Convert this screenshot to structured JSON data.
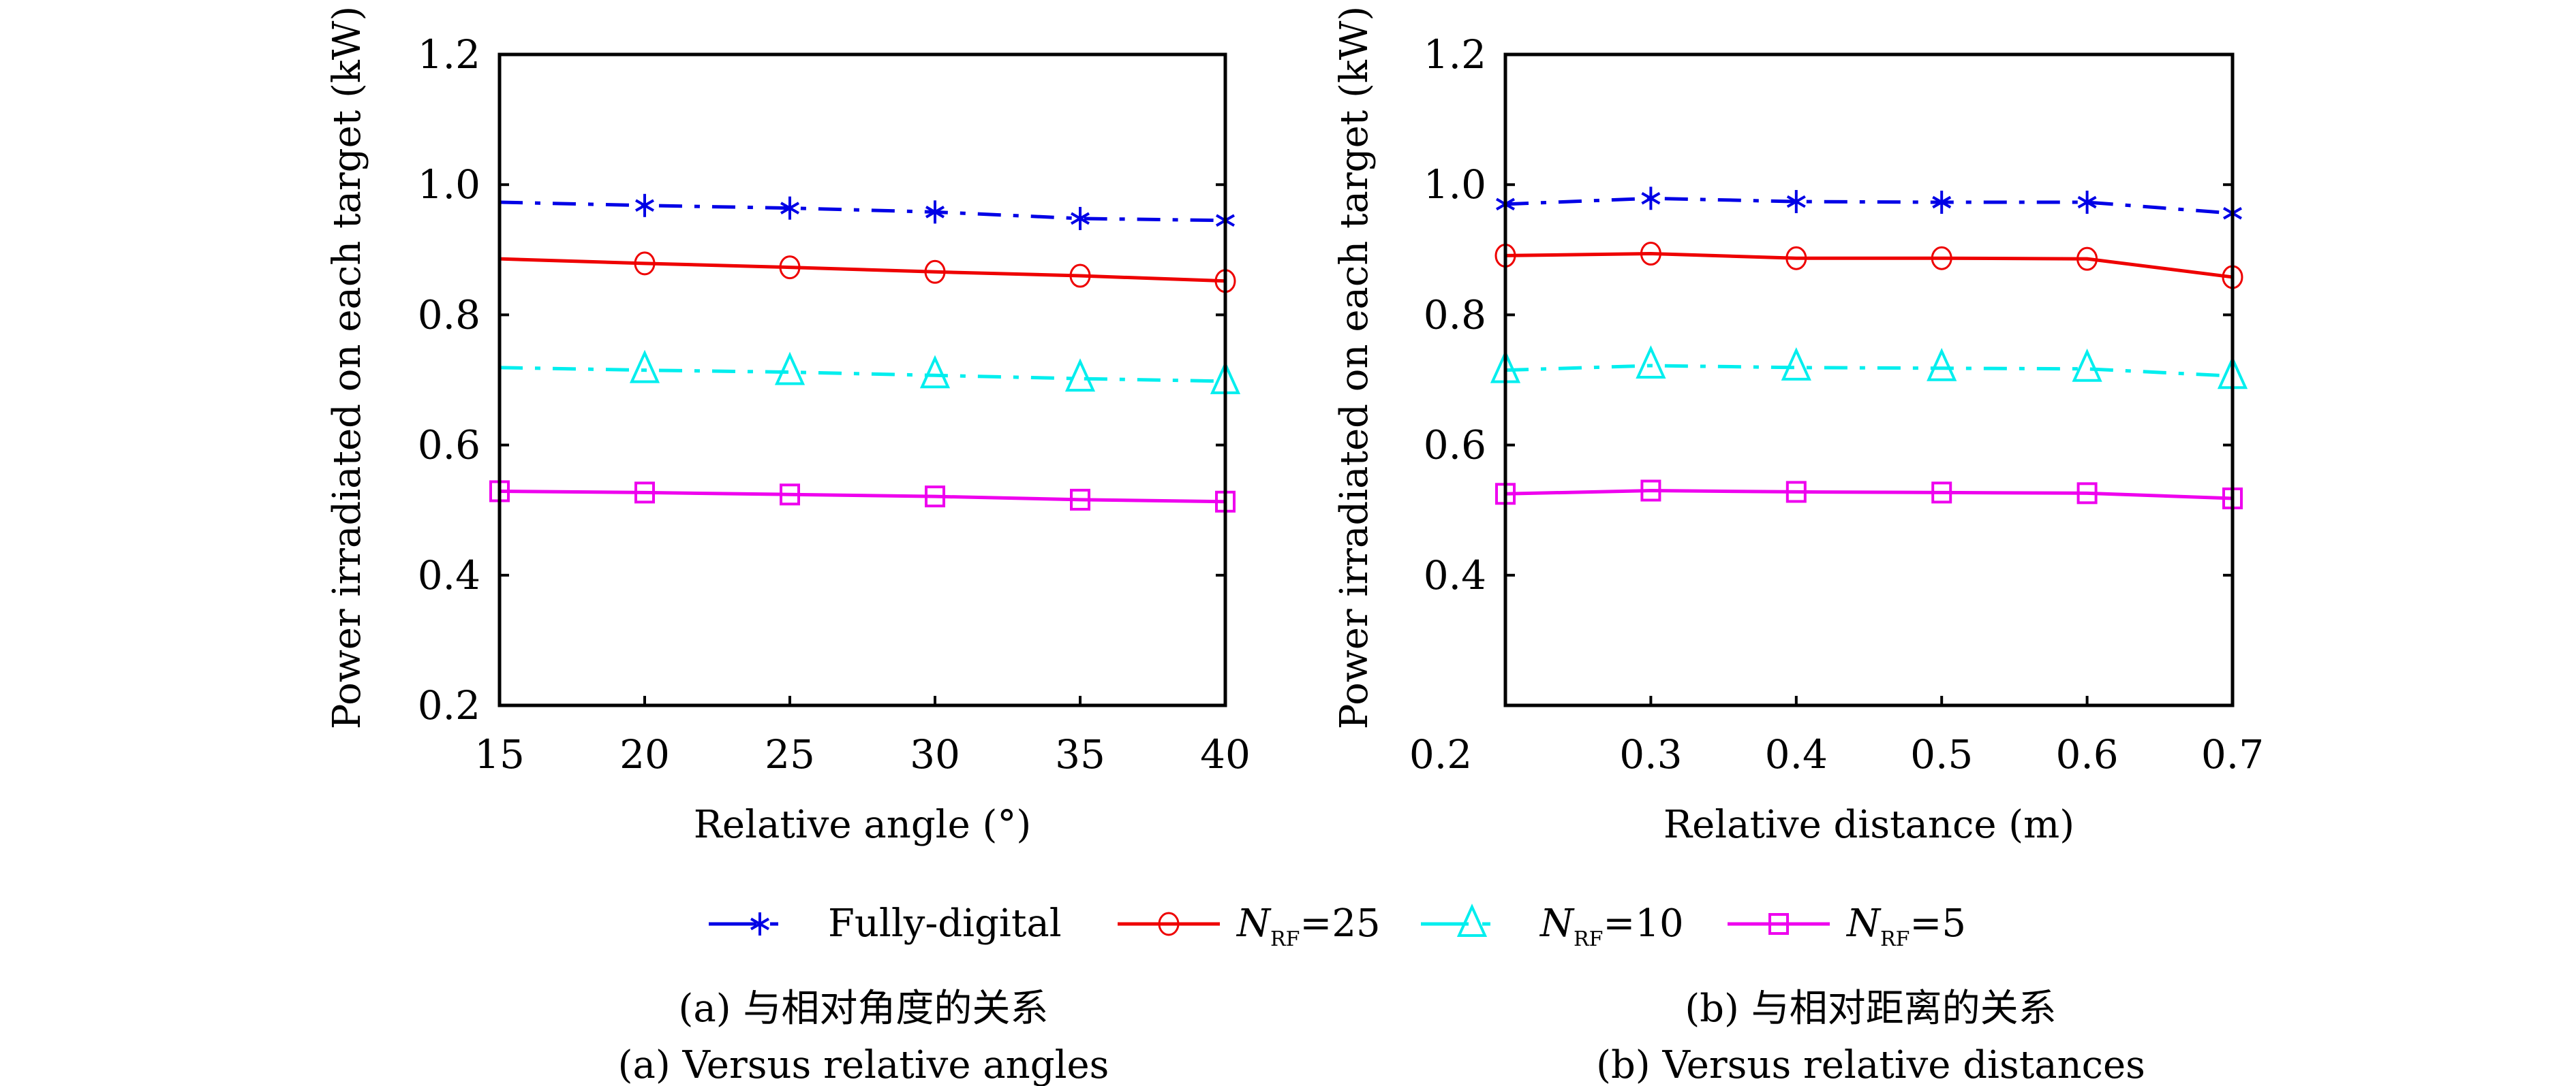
{
  "chart_data": [
    {
      "type": "line",
      "id": "a",
      "xlabel": "Relative angle (°)",
      "ylabel": "Power irradiated on each target (kW)",
      "x": [
        15,
        20,
        25,
        30,
        35,
        40
      ],
      "xticks": [
        "15",
        "20",
        "25",
        "30",
        "35",
        "40"
      ],
      "xlim": [
        15,
        40
      ],
      "ylim": [
        0.2,
        1.2
      ],
      "yticks": [
        "0.2",
        "0.4",
        "0.6",
        "0.8",
        "1.0",
        "1.2"
      ],
      "grid": false,
      "series": [
        {
          "name": "Fully-digital",
          "values": [
            0.973,
            0.968,
            0.964,
            0.958,
            0.948,
            0.945
          ]
        },
        {
          "name": "N_RF=25",
          "values": [
            0.886,
            0.879,
            0.873,
            0.866,
            0.86,
            0.852
          ]
        },
        {
          "name": "N_RF=10",
          "values": [
            0.719,
            0.715,
            0.712,
            0.707,
            0.702,
            0.698
          ]
        },
        {
          "name": "N_RF=5",
          "values": [
            0.529,
            0.527,
            0.524,
            0.521,
            0.516,
            0.513
          ]
        }
      ],
      "caption_cn": "(a) 与相对角度的关系",
      "caption_en": "(a) Versus relative angles"
    },
    {
      "type": "line",
      "id": "b",
      "xlabel": "Relative distance (m)",
      "ylabel": "Power irradiated on each target (kW)",
      "x": [
        0.2,
        0.3,
        0.4,
        0.5,
        0.6,
        0.7
      ],
      "xticks": [
        "0.2",
        "0.3",
        "0.4",
        "0.5",
        "0.6",
        "0.7"
      ],
      "xlim": [
        0.2,
        0.7
      ],
      "ylim": [
        0.2,
        1.2
      ],
      "yticks": [
        "0.4",
        "0.6",
        "0.8",
        "1.0",
        "1.2"
      ],
      "ytick_outside_bottom": "0.2",
      "grid": false,
      "series": [
        {
          "name": "Fully-digital",
          "values": [
            0.97,
            0.979,
            0.974,
            0.973,
            0.973,
            0.956
          ]
        },
        {
          "name": "N_RF=25",
          "values": [
            0.891,
            0.894,
            0.887,
            0.887,
            0.886,
            0.858
          ]
        },
        {
          "name": "N_RF=10",
          "values": [
            0.715,
            0.722,
            0.719,
            0.718,
            0.717,
            0.706
          ]
        },
        {
          "name": "N_RF=5",
          "values": [
            0.525,
            0.53,
            0.528,
            0.527,
            0.526,
            0.518
          ]
        }
      ],
      "caption_cn": "(b) 与相对距离的关系",
      "caption_en": "(b) Versus relative distances"
    }
  ],
  "legend": {
    "placement": "bottom-center",
    "entries": [
      {
        "label": "Fully-digital",
        "sub": "",
        "suffix": "",
        "color": "#0000e6",
        "marker": "asterisk",
        "dash": "dashdot"
      },
      {
        "label": "N",
        "sub": "RF",
        "suffix": "=25",
        "color": "#ee0000",
        "marker": "circle",
        "dash": "solid"
      },
      {
        "label": "N",
        "sub": "RF",
        "suffix": "=10",
        "color": "#00eeee",
        "marker": "triangle",
        "dash": "dashdot"
      },
      {
        "label": "N",
        "sub": "RF",
        "suffix": "=5",
        "color": "#ee00ee",
        "marker": "square",
        "dash": "solid"
      }
    ]
  }
}
